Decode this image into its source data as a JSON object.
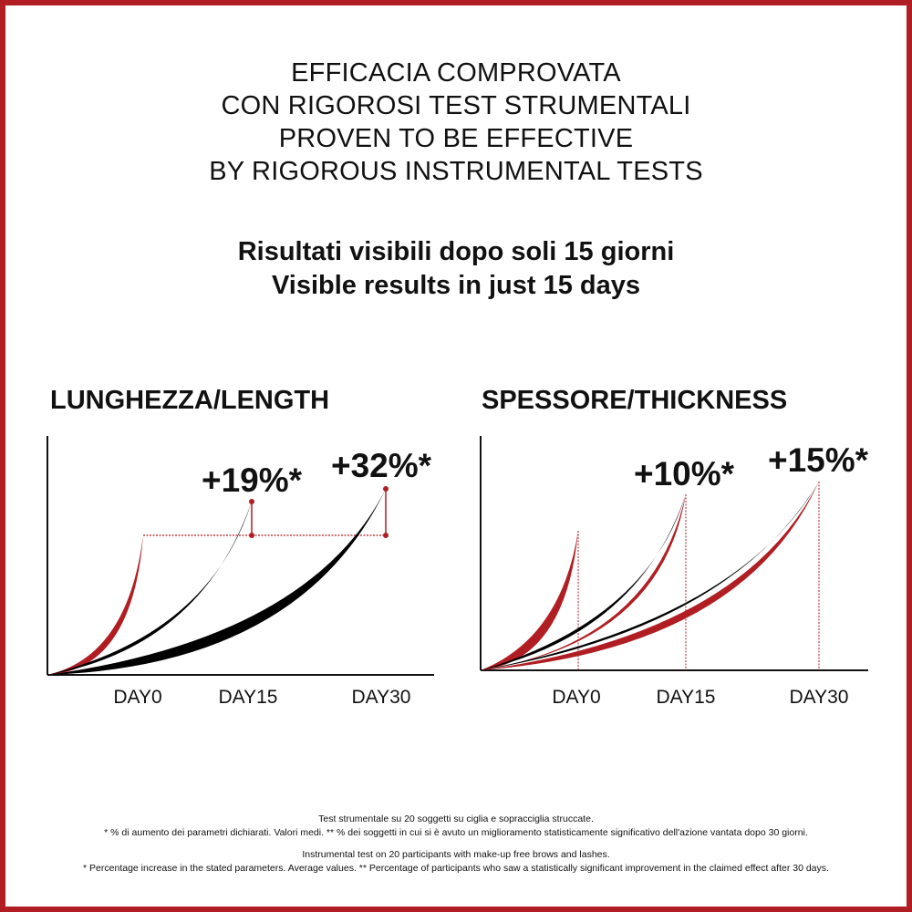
{
  "heading": [
    "EFFICACIA COMPROVATA",
    "CON RIGOROSI TEST STRUMENTALI",
    "PROVEN TO BE EFFECTIVE",
    "BY RIGOROUS INSTRUMENTAL TESTS"
  ],
  "subheading": [
    "Risultati visibili dopo soli 15 giorni",
    "Visible results in just 15 days"
  ],
  "colors": {
    "accent": "#b01e23",
    "curve_dark": "#000000"
  },
  "charts": [
    {
      "title": "LUNGHEZZA/LENGTH",
      "days": [
        "DAY0",
        "DAY15",
        "DAY30"
      ],
      "increases": [
        "+19%*",
        "+32%*"
      ]
    },
    {
      "title": "SPESSORE/THICKNESS",
      "days": [
        "DAY0",
        "DAY15",
        "DAY30"
      ],
      "increases": [
        "+10%*",
        "+15%*"
      ]
    }
  ],
  "footnotes": {
    "it_line1": "Test strumentale su 20 soggetti su ciglia e sopracciglia struccate.",
    "it_line2": "* % di aumento dei parametri dichiarati. Valori medi. ** % dei soggetti in cui si è avuto un miglioramento statisticamente significativo dell'azione vantata dopo 30 giorni.",
    "en_line1": "Instrumental test on 20 participants with make-up free brows and lashes.",
    "en_line2": "* Percentage increase in the stated parameters. Average values. ** Percentage of participants who saw a statistically significant improvement in the claimed effect after 30 days."
  }
}
